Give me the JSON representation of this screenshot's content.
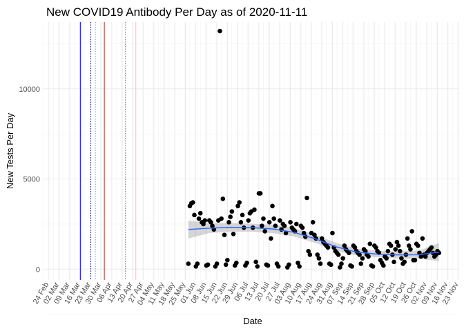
{
  "chart_data": {
    "type": "scatter",
    "title": "New COVID19 Antibody Per Day as of 2020-11-11",
    "xlabel": "Date",
    "ylabel": "New Tests Per Day",
    "xlim": [
      "2020-02-20",
      "2020-11-23"
    ],
    "ylim": [
      -600,
      13700
    ],
    "y_ticks": [
      0,
      5000,
      10000
    ],
    "x_ticks": [
      "2020-02-24",
      "2020-03-02",
      "2020-03-09",
      "2020-03-16",
      "2020-03-23",
      "2020-03-30",
      "2020-04-06",
      "2020-04-13",
      "2020-04-20",
      "2020-04-27",
      "2020-05-04",
      "2020-05-11",
      "2020-05-18",
      "2020-05-25",
      "2020-06-01",
      "2020-06-08",
      "2020-06-15",
      "2020-06-22",
      "2020-06-29",
      "2020-07-06",
      "2020-07-13",
      "2020-07-20",
      "2020-07-27",
      "2020-08-03",
      "2020-08-10",
      "2020-08-17",
      "2020-08-24",
      "2020-08-31",
      "2020-09-07",
      "2020-09-14",
      "2020-09-21",
      "2020-09-28",
      "2020-10-05",
      "2020-10-12",
      "2020-10-19",
      "2020-10-26",
      "2020-11-02",
      "2020-11-09",
      "2020-11-16",
      "2020-11-23"
    ],
    "x_tick_labels": [
      "24 Feb",
      "02 Mar",
      "09 Mar",
      "16 Mar",
      "23 Mar",
      "30 Mar",
      "06 Apr",
      "13 Apr",
      "20 Apr",
      "27 Apr",
      "04 May",
      "11 May",
      "18 May",
      "25 May",
      "01 Jun",
      "08 Jun",
      "15 Jun",
      "22 Jun",
      "29 Jun",
      "06 Jul",
      "13 Jul",
      "20 Jul",
      "27 Jul",
      "03 Aug",
      "10 Aug",
      "17 Aug",
      "24 Aug",
      "31 Aug",
      "07 Sep",
      "14 Sep",
      "21 Sep",
      "28 Sep",
      "05 Oct",
      "12 Oct",
      "19 Oct",
      "26 Oct",
      "02 Nov",
      "09 Nov",
      "16 Nov",
      "23 Nov"
    ],
    "grid": true,
    "vlines": [
      {
        "date": "2020-03-16",
        "color": "#0000ff",
        "style": "solid"
      },
      {
        "date": "2020-03-23",
        "color": "#000080",
        "style": "dotted"
      },
      {
        "date": "2020-03-26",
        "color": "#6495ed",
        "style": "dotted"
      },
      {
        "date": "2020-04-01",
        "color": "#b22222",
        "style": "solid"
      },
      {
        "date": "2020-04-15",
        "color": "#ff4d4d",
        "style": "dotted"
      },
      {
        "date": "2020-04-22",
        "color": "#ffb6c1",
        "style": "solid"
      }
    ],
    "points": [
      {
        "x": "2020-05-27",
        "y": 300
      },
      {
        "x": "2020-05-28",
        "y": 3500
      },
      {
        "x": "2020-05-29",
        "y": 3650
      },
      {
        "x": "2020-05-30",
        "y": 3700
      },
      {
        "x": "2020-05-31",
        "y": 3000
      },
      {
        "x": "2020-06-01",
        "y": 150
      },
      {
        "x": "2020-06-02",
        "y": 300
      },
      {
        "x": "2020-06-03",
        "y": 2800
      },
      {
        "x": "2020-06-04",
        "y": 3100
      },
      {
        "x": "2020-06-05",
        "y": 2600
      },
      {
        "x": "2020-06-06",
        "y": 2500
      },
      {
        "x": "2020-06-07",
        "y": 2700
      },
      {
        "x": "2020-06-08",
        "y": 200
      },
      {
        "x": "2020-06-09",
        "y": 250
      },
      {
        "x": "2020-06-10",
        "y": 2700
      },
      {
        "x": "2020-06-11",
        "y": 2600
      },
      {
        "x": "2020-06-12",
        "y": 2400
      },
      {
        "x": "2020-06-13",
        "y": 2200
      },
      {
        "x": "2020-06-14",
        "y": 150
      },
      {
        "x": "2020-06-15",
        "y": 300
      },
      {
        "x": "2020-06-16",
        "y": 2700
      },
      {
        "x": "2020-06-17",
        "y": 13200
      },
      {
        "x": "2020-06-18",
        "y": 2800
      },
      {
        "x": "2020-06-19",
        "y": 3900
      },
      {
        "x": "2020-06-20",
        "y": 1900
      },
      {
        "x": "2020-06-21",
        "y": 250
      },
      {
        "x": "2020-06-22",
        "y": 500
      },
      {
        "x": "2020-06-23",
        "y": 2600
      },
      {
        "x": "2020-06-24",
        "y": 2900
      },
      {
        "x": "2020-06-25",
        "y": 3200
      },
      {
        "x": "2020-06-26",
        "y": 1950
      },
      {
        "x": "2020-06-27",
        "y": 200
      },
      {
        "x": "2020-06-28",
        "y": 350
      },
      {
        "x": "2020-06-29",
        "y": 3500
      },
      {
        "x": "2020-06-30",
        "y": 3700
      },
      {
        "x": "2020-07-01",
        "y": 2600
      },
      {
        "x": "2020-07-02",
        "y": 3000
      },
      {
        "x": "2020-07-03",
        "y": 2300
      },
      {
        "x": "2020-07-04",
        "y": 200
      },
      {
        "x": "2020-07-05",
        "y": 350
      },
      {
        "x": "2020-07-06",
        "y": 2700
      },
      {
        "x": "2020-07-07",
        "y": 3100
      },
      {
        "x": "2020-07-08",
        "y": 3200
      },
      {
        "x": "2020-07-09",
        "y": 2300
      },
      {
        "x": "2020-07-10",
        "y": 3300
      },
      {
        "x": "2020-07-11",
        "y": 400
      },
      {
        "x": "2020-07-12",
        "y": 150
      },
      {
        "x": "2020-07-13",
        "y": 4200
      },
      {
        "x": "2020-07-14",
        "y": 4200
      },
      {
        "x": "2020-07-15",
        "y": 2400
      },
      {
        "x": "2020-07-16",
        "y": 2800
      },
      {
        "x": "2020-07-17",
        "y": 2100
      },
      {
        "x": "2020-07-18",
        "y": 250
      },
      {
        "x": "2020-07-19",
        "y": 200
      },
      {
        "x": "2020-07-20",
        "y": 2600
      },
      {
        "x": "2020-07-21",
        "y": 1700
      },
      {
        "x": "2020-07-22",
        "y": 3500
      },
      {
        "x": "2020-07-23",
        "y": 2800
      },
      {
        "x": "2020-07-24",
        "y": 2400
      },
      {
        "x": "2020-07-25",
        "y": 300
      },
      {
        "x": "2020-07-26",
        "y": 150
      },
      {
        "x": "2020-07-27",
        "y": 2700
      },
      {
        "x": "2020-07-28",
        "y": 2200
      },
      {
        "x": "2020-07-29",
        "y": 2500
      },
      {
        "x": "2020-07-30",
        "y": 2400
      },
      {
        "x": "2020-07-31",
        "y": 2000
      },
      {
        "x": "2020-08-01",
        "y": 100
      },
      {
        "x": "2020-08-02",
        "y": 250
      },
      {
        "x": "2020-08-03",
        "y": 2600
      },
      {
        "x": "2020-08-04",
        "y": 2300
      },
      {
        "x": "2020-08-05",
        "y": 2200
      },
      {
        "x": "2020-08-06",
        "y": 2100
      },
      {
        "x": "2020-08-07",
        "y": 2500
      },
      {
        "x": "2020-08-08",
        "y": 350
      },
      {
        "x": "2020-08-09",
        "y": 150
      },
      {
        "x": "2020-08-10",
        "y": 2400
      },
      {
        "x": "2020-08-11",
        "y": 2300
      },
      {
        "x": "2020-08-12",
        "y": 2000
      },
      {
        "x": "2020-08-13",
        "y": 1800
      },
      {
        "x": "2020-08-14",
        "y": 3950
      },
      {
        "x": "2020-08-15",
        "y": 1000
      },
      {
        "x": "2020-08-16",
        "y": 800
      },
      {
        "x": "2020-08-17",
        "y": 2000
      },
      {
        "x": "2020-08-18",
        "y": 2600
      },
      {
        "x": "2020-08-19",
        "y": 1900
      },
      {
        "x": "2020-08-20",
        "y": 1700
      },
      {
        "x": "2020-08-21",
        "y": 800
      },
      {
        "x": "2020-08-22",
        "y": 600
      },
      {
        "x": "2020-08-23",
        "y": 300
      },
      {
        "x": "2020-08-24",
        "y": 1700
      },
      {
        "x": "2020-08-25",
        "y": 1500
      },
      {
        "x": "2020-08-26",
        "y": 1400
      },
      {
        "x": "2020-08-27",
        "y": 1300
      },
      {
        "x": "2020-08-28",
        "y": 1200
      },
      {
        "x": "2020-08-29",
        "y": 300
      },
      {
        "x": "2020-08-30",
        "y": 250
      },
      {
        "x": "2020-08-31",
        "y": 2000
      },
      {
        "x": "2020-09-01",
        "y": 1200
      },
      {
        "x": "2020-09-02",
        "y": 1000
      },
      {
        "x": "2020-09-03",
        "y": 900
      },
      {
        "x": "2020-09-04",
        "y": 800
      },
      {
        "x": "2020-09-05",
        "y": 100
      },
      {
        "x": "2020-09-06",
        "y": 300
      },
      {
        "x": "2020-09-07",
        "y": 600
      },
      {
        "x": "2020-09-08",
        "y": 1300
      },
      {
        "x": "2020-09-09",
        "y": 1100
      },
      {
        "x": "2020-09-10",
        "y": 1000
      },
      {
        "x": "2020-09-11",
        "y": 900
      },
      {
        "x": "2020-09-12",
        "y": 200
      },
      {
        "x": "2020-09-13",
        "y": 150
      },
      {
        "x": "2020-09-14",
        "y": 1300
      },
      {
        "x": "2020-09-15",
        "y": 1200
      },
      {
        "x": "2020-09-16",
        "y": 1000
      },
      {
        "x": "2020-09-17",
        "y": 900
      },
      {
        "x": "2020-09-18",
        "y": 800
      },
      {
        "x": "2020-09-19",
        "y": 300
      },
      {
        "x": "2020-09-20",
        "y": 600
      },
      {
        "x": "2020-09-21",
        "y": 1100
      },
      {
        "x": "2020-09-22",
        "y": 1000
      },
      {
        "x": "2020-09-23",
        "y": 800
      },
      {
        "x": "2020-09-24",
        "y": 700
      },
      {
        "x": "2020-09-25",
        "y": 1400
      },
      {
        "x": "2020-09-26",
        "y": 200
      },
      {
        "x": "2020-09-27",
        "y": 150
      },
      {
        "x": "2020-09-28",
        "y": 1300
      },
      {
        "x": "2020-09-29",
        "y": 1200
      },
      {
        "x": "2020-09-30",
        "y": 1000
      },
      {
        "x": "2020-10-01",
        "y": 900
      },
      {
        "x": "2020-10-02",
        "y": 500
      },
      {
        "x": "2020-10-03",
        "y": 350
      },
      {
        "x": "2020-10-04",
        "y": 200
      },
      {
        "x": "2020-10-05",
        "y": 700
      },
      {
        "x": "2020-10-06",
        "y": 600
      },
      {
        "x": "2020-10-07",
        "y": 1000
      },
      {
        "x": "2020-10-08",
        "y": 1400
      },
      {
        "x": "2020-10-09",
        "y": 1300
      },
      {
        "x": "2020-10-10",
        "y": 800
      },
      {
        "x": "2020-10-11",
        "y": 400
      },
      {
        "x": "2020-10-12",
        "y": 1100
      },
      {
        "x": "2020-10-13",
        "y": 1500
      },
      {
        "x": "2020-10-14",
        "y": 1300
      },
      {
        "x": "2020-10-15",
        "y": 1000
      },
      {
        "x": "2020-10-16",
        "y": 600
      },
      {
        "x": "2020-10-17",
        "y": 300
      },
      {
        "x": "2020-10-18",
        "y": 400
      },
      {
        "x": "2020-10-19",
        "y": 800
      },
      {
        "x": "2020-10-20",
        "y": 1700
      },
      {
        "x": "2020-10-21",
        "y": 1300
      },
      {
        "x": "2020-10-22",
        "y": 1100
      },
      {
        "x": "2020-10-23",
        "y": 2100
      },
      {
        "x": "2020-10-24",
        "y": 500
      },
      {
        "x": "2020-10-25",
        "y": 500
      },
      {
        "x": "2020-10-26",
        "y": 1400
      },
      {
        "x": "2020-10-27",
        "y": 1300
      },
      {
        "x": "2020-10-28",
        "y": 900
      },
      {
        "x": "2020-10-29",
        "y": 700
      },
      {
        "x": "2020-10-30",
        "y": 1700
      },
      {
        "x": "2020-10-31",
        "y": 800
      },
      {
        "x": "2020-11-01",
        "y": 700
      },
      {
        "x": "2020-11-02",
        "y": 900
      },
      {
        "x": "2020-11-03",
        "y": 1000
      },
      {
        "x": "2020-11-04",
        "y": 1100
      },
      {
        "x": "2020-11-05",
        "y": 1200
      },
      {
        "x": "2020-11-06",
        "y": 900
      },
      {
        "x": "2020-11-07",
        "y": 700
      },
      {
        "x": "2020-11-08",
        "y": 800
      },
      {
        "x": "2020-11-09",
        "y": 1000
      },
      {
        "x": "2020-11-10",
        "y": 900
      }
    ],
    "smooth": {
      "color": "#3366ff",
      "x": [
        "2020-05-27",
        "2020-06-10",
        "2020-06-24",
        "2020-07-08",
        "2020-07-22",
        "2020-08-05",
        "2020-08-19",
        "2020-09-02",
        "2020-09-16",
        "2020-09-30",
        "2020-10-14",
        "2020-10-28",
        "2020-11-10"
      ],
      "y": [
        2200,
        2270,
        2320,
        2300,
        2230,
        2050,
        1700,
        1250,
        950,
        830,
        790,
        800,
        950
      ],
      "lower": [
        1700,
        2000,
        2080,
        2080,
        2000,
        1820,
        1470,
        1030,
        760,
        650,
        600,
        570,
        450
      ],
      "upper": [
        2700,
        2540,
        2560,
        2520,
        2460,
        2280,
        1930,
        1470,
        1140,
        1010,
        980,
        1030,
        1450
      ]
    }
  }
}
